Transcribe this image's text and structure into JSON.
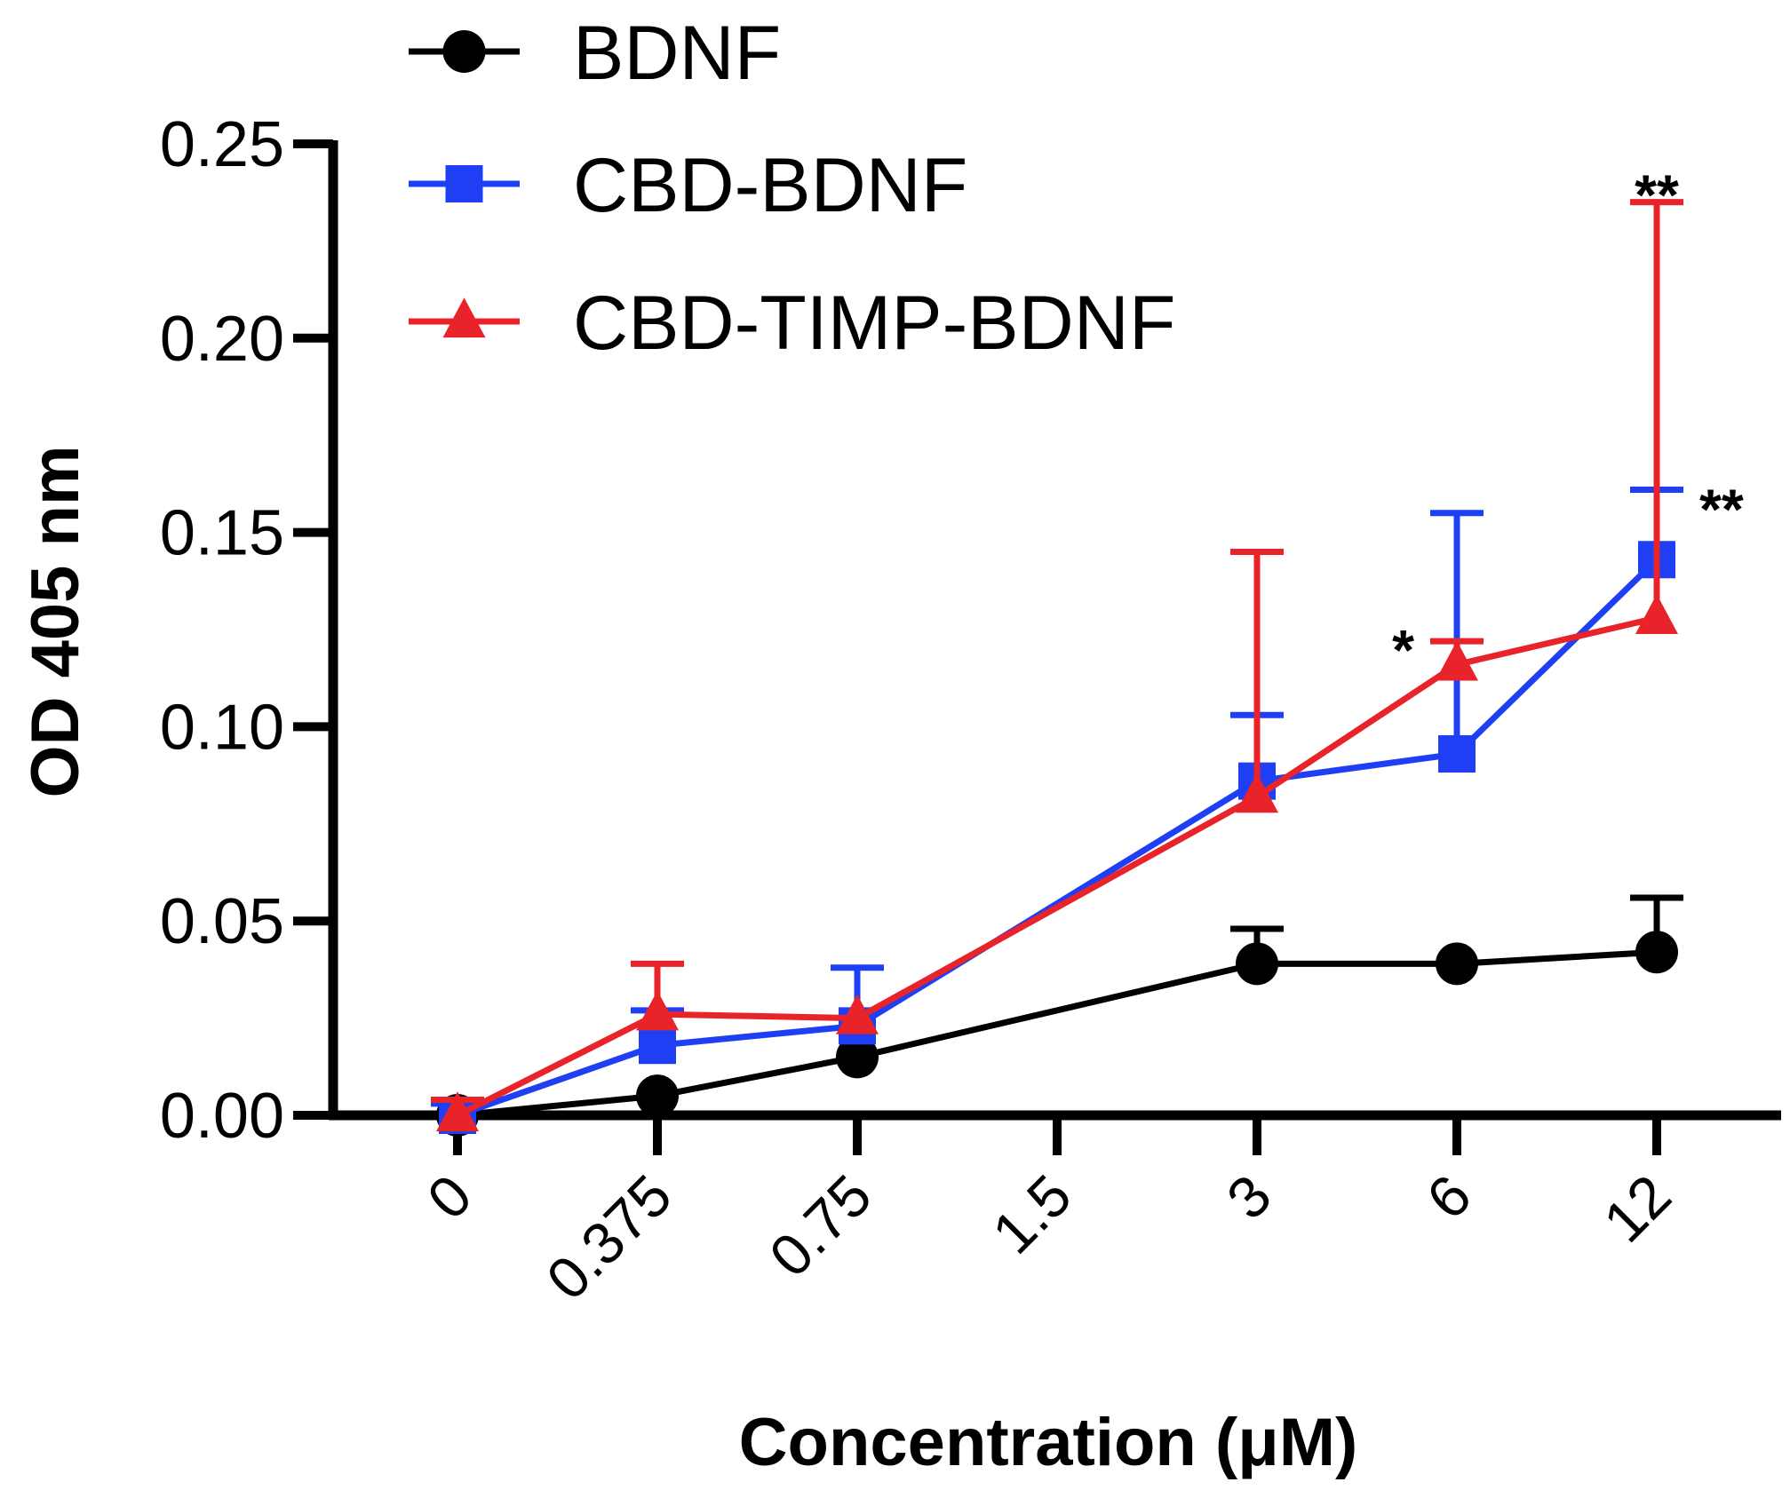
{
  "chart_data": {
    "type": "line",
    "title": "",
    "xlabel": "Concentration (μM)",
    "ylabel": "OD 405 nm",
    "categories": [
      "0",
      "0.375",
      "0.75",
      "1.5",
      "3",
      "6",
      "12"
    ],
    "yticks": [
      "0.00",
      "0.05",
      "0.10",
      "0.15",
      "0.20",
      "0.25"
    ],
    "ylim": [
      0,
      0.25
    ],
    "grid": false,
    "legend_position": "top-left",
    "series": [
      {
        "name": "BDNF",
        "color": "#000000",
        "marker": "circle",
        "points": [
          {
            "x": "0",
            "y": 0.0,
            "err": 0.0
          },
          {
            "x": "0.375",
            "y": 0.005,
            "err": 0.0
          },
          {
            "x": "0.75",
            "y": 0.015,
            "err": 0.0
          },
          {
            "x": "3",
            "y": 0.039,
            "err": 0.009
          },
          {
            "x": "6",
            "y": 0.039,
            "err": 0.0
          },
          {
            "x": "12",
            "y": 0.042,
            "err": 0.014
          }
        ]
      },
      {
        "name": "CBD-BDNF",
        "color": "#1f3ff5",
        "marker": "square",
        "points": [
          {
            "x": "0",
            "y": 0.0,
            "err": 0.003
          },
          {
            "x": "0.375",
            "y": 0.018,
            "err": 0.009
          },
          {
            "x": "0.75",
            "y": 0.023,
            "err": 0.015
          },
          {
            "x": "3",
            "y": 0.086,
            "err": 0.017
          },
          {
            "x": "6",
            "y": 0.093,
            "err": 0.062
          },
          {
            "x": "12",
            "y": 0.143,
            "err": 0.018
          }
        ]
      },
      {
        "name": "CBD-TIMP-BDNF",
        "color": "#e8232a",
        "marker": "triangle",
        "points": [
          {
            "x": "0",
            "y": 0.0,
            "err": 0.004
          },
          {
            "x": "0.375",
            "y": 0.026,
            "err": 0.013
          },
          {
            "x": "0.75",
            "y": 0.025,
            "err": 0.0
          },
          {
            "x": "3",
            "y": 0.082,
            "err": 0.063
          },
          {
            "x": "6",
            "y": 0.116,
            "err": 0.006
          },
          {
            "x": "12",
            "y": 0.128,
            "err": 0.107
          }
        ]
      }
    ],
    "annotations": [
      {
        "text": "**",
        "x": "12",
        "y": 0.241,
        "series": "CBD-TIMP-BDNF",
        "placement": "above"
      },
      {
        "text": "**",
        "x": "12",
        "y": 0.161,
        "series": "CBD-BDNF",
        "placement": "right"
      },
      {
        "text": "*",
        "x": "6",
        "y": 0.122,
        "series": "CBD-TIMP-BDNF",
        "placement": "left"
      }
    ]
  }
}
